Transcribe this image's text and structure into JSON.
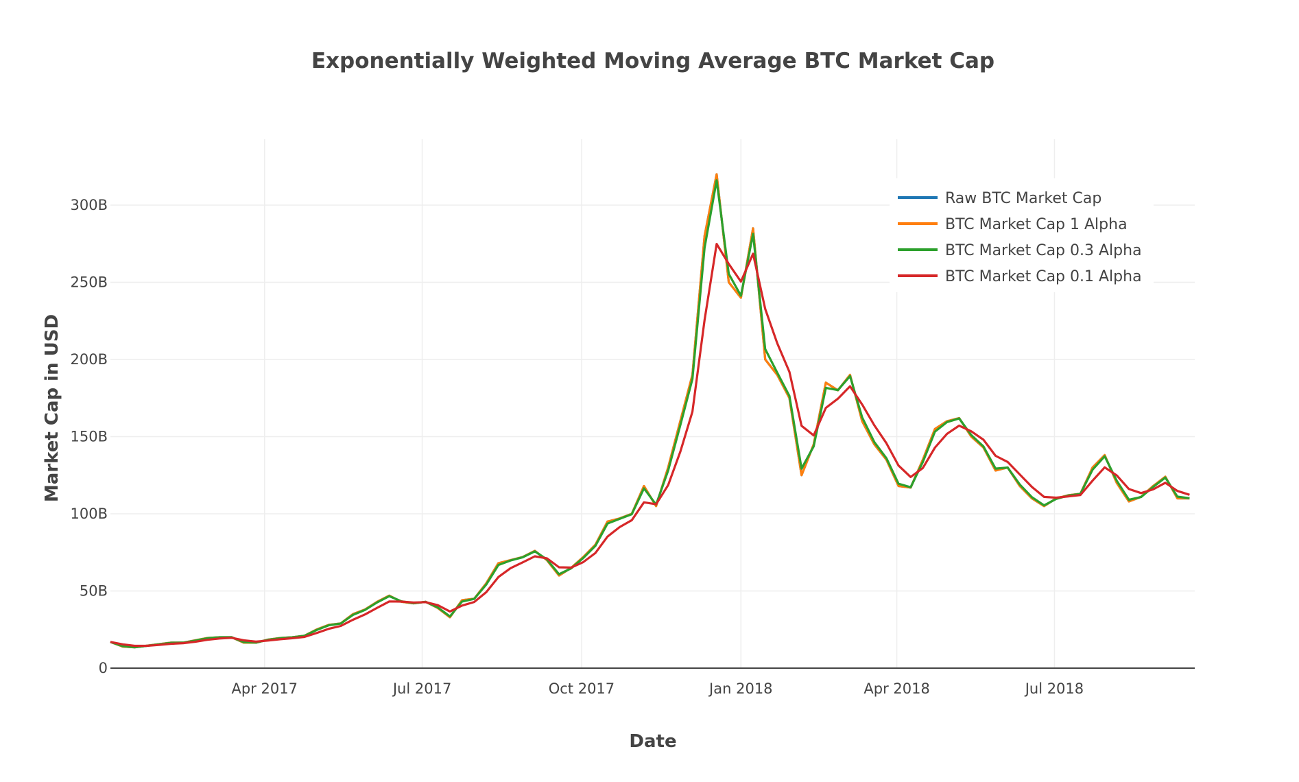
{
  "chart_data": {
    "type": "line",
    "title": "Exponentially Weighted Moving Average BTC Market Cap",
    "xlabel": "Date",
    "ylabel": "Market Cap in USD",
    "xlim": [
      "2017-01-02",
      "2018-09-20"
    ],
    "ylim": [
      0,
      340
    ],
    "y_unit": "B",
    "x_ticks": [
      {
        "date": "2017-04-01",
        "label": "Apr 2017"
      },
      {
        "date": "2017-07-01",
        "label": "Jul 2017"
      },
      {
        "date": "2017-10-01",
        "label": "Oct 2017"
      },
      {
        "date": "2018-01-01",
        "label": "Jan 2018"
      },
      {
        "date": "2018-04-01",
        "label": "Apr 2018"
      },
      {
        "date": "2018-07-01",
        "label": "Jul 2018"
      }
    ],
    "y_ticks": [
      {
        "value": 0,
        "label": "0"
      },
      {
        "value": 50,
        "label": "50B"
      },
      {
        "value": 100,
        "label": "100B"
      },
      {
        "value": 150,
        "label": "150B"
      },
      {
        "value": 200,
        "label": "200B"
      },
      {
        "value": 250,
        "label": "250B"
      },
      {
        "value": 300,
        "label": "300B"
      }
    ],
    "grid": true,
    "legend_position": "top-right",
    "x_start": "2017-01-02",
    "x_step_days": 7,
    "raw_values": [
      17,
      14,
      13.5,
      14.5,
      15.5,
      16.5,
      16.5,
      18,
      19.5,
      20,
      20,
      16.5,
      16.5,
      18.5,
      19.5,
      20,
      21,
      25,
      28,
      29,
      35,
      38,
      43,
      47,
      43,
      42,
      43,
      39,
      33,
      44,
      45,
      55,
      68,
      70,
      72,
      76,
      70,
      60,
      65,
      72,
      80,
      95,
      97,
      100,
      118,
      105,
      130,
      160,
      190,
      280,
      320,
      250,
      240,
      285,
      200,
      190,
      175,
      125,
      145,
      185,
      180,
      190,
      160,
      145,
      135,
      118,
      117,
      135,
      155,
      160,
      162,
      150,
      143,
      128,
      130,
      118,
      110,
      105,
      110,
      112,
      113,
      130,
      138,
      120,
      108,
      111,
      118,
      124,
      110,
      110
    ],
    "series": [
      {
        "name": "Raw BTC Market Cap",
        "alpha": null,
        "color": "#1f77b4"
      },
      {
        "name": "BTC Market Cap 1 Alpha",
        "alpha": 1,
        "color": "#ff7f0e"
      },
      {
        "name": "BTC Market Cap 0.3 Alpha",
        "alpha": 0.3,
        "color": "#2ca02c"
      },
      {
        "name": "BTC Market Cap 0.1 Alpha",
        "alpha": 0.1,
        "color": "#d62728"
      }
    ]
  }
}
